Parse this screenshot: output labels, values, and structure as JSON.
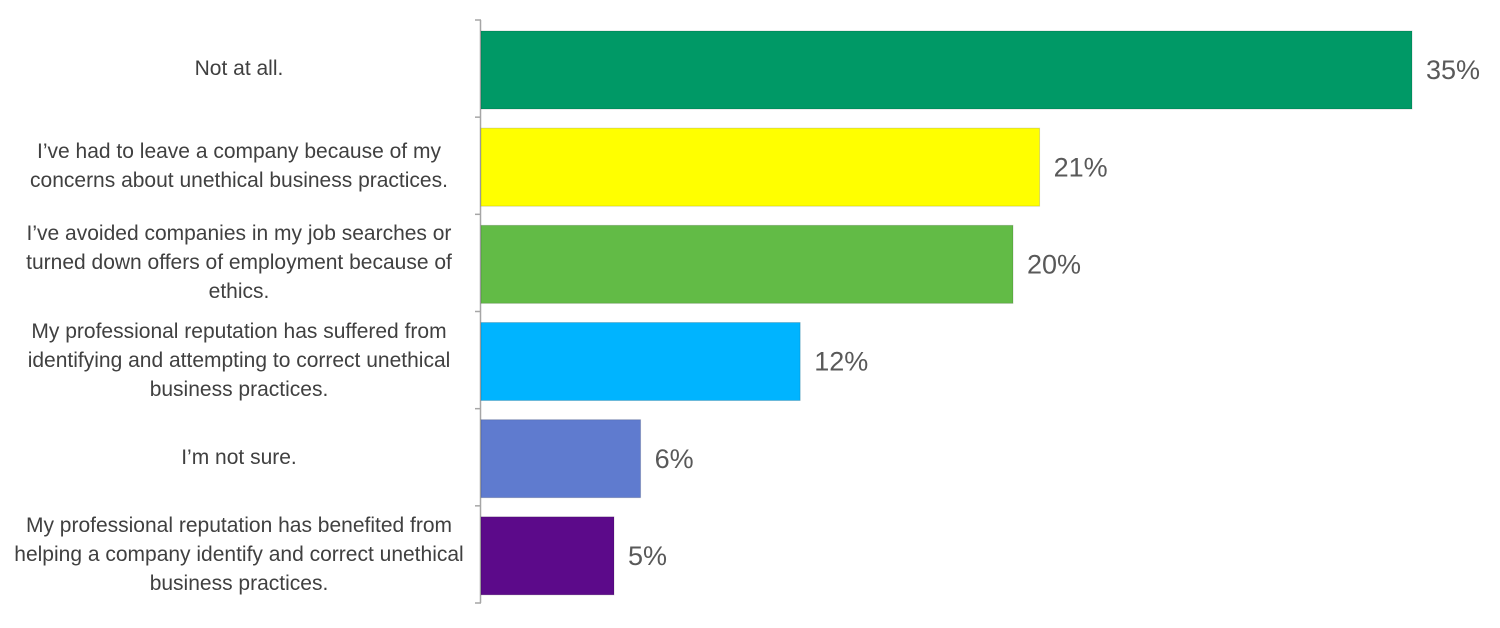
{
  "chart_data": {
    "type": "bar",
    "orientation": "horizontal",
    "categories": [
      "Not at all.",
      "I’ve had to leave a company because of my concerns about unethical business practices.",
      "I’ve avoided companies in my job searches or turned down offers of employment because of ethics.",
      "My professional reputation has suffered from identifying and attempting to correct unethical business practices.",
      "I’m not sure.",
      "My professional reputation has benefited from helping a company identify and correct unethical business practices."
    ],
    "values": [
      35,
      21,
      20,
      12,
      6,
      5
    ],
    "value_labels": [
      "35%",
      "21%",
      "20%",
      "12%",
      "6%",
      "5%"
    ],
    "colors": [
      "#009966",
      "#ffff00",
      "#62bb46",
      "#00b4ff",
      "#5f7bcf",
      "#5c0a8a"
    ]
  }
}
